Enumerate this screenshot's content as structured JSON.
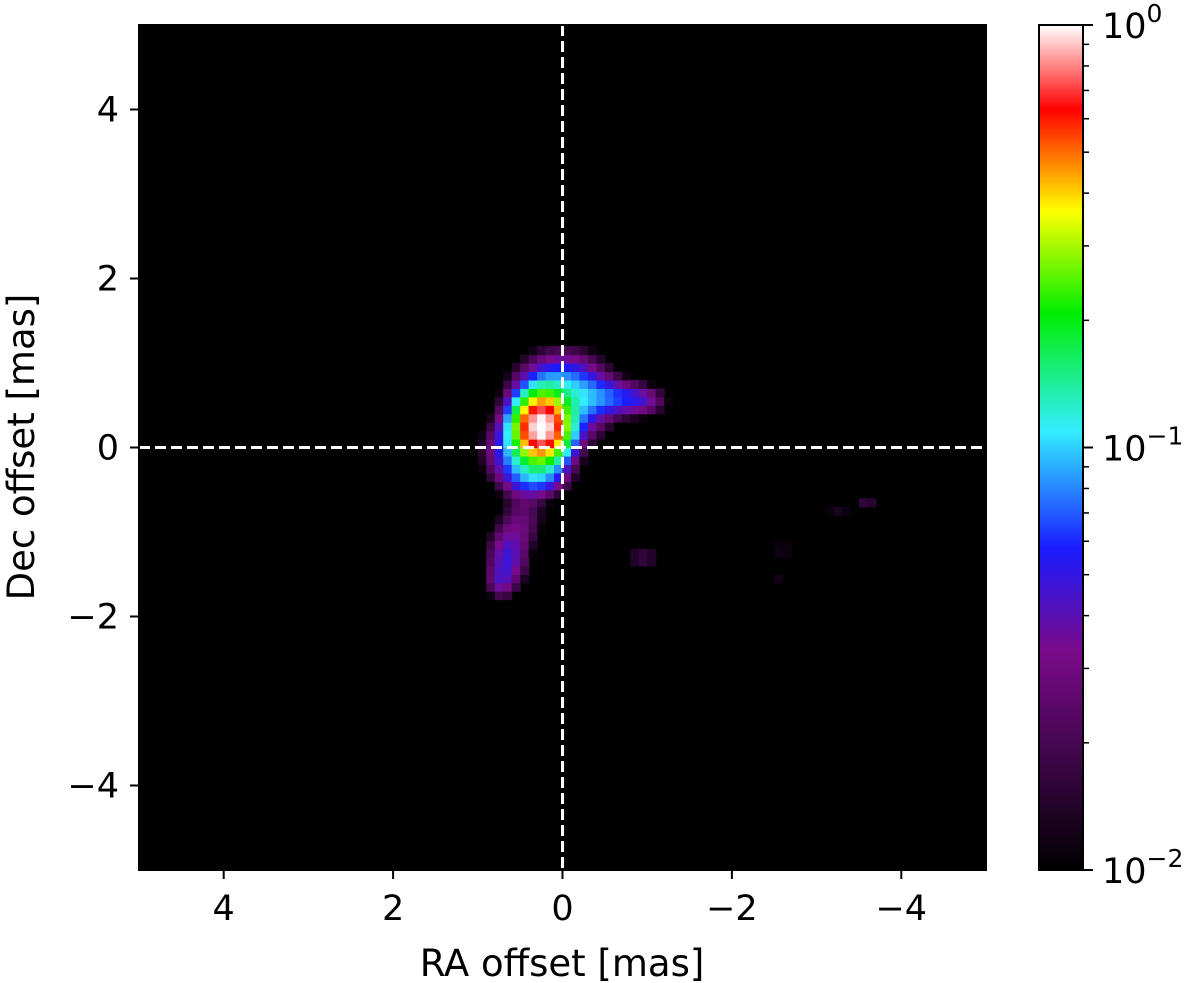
{
  "chart_data": {
    "type": "heatmap",
    "title": "",
    "xlabel": "RA offset [mas]",
    "ylabel": "Dec offset [mas]",
    "xlim": [
      5,
      -5
    ],
    "ylim": [
      -5,
      5
    ],
    "xticks": [
      4,
      2,
      0,
      -2,
      -4
    ],
    "yticks": [
      4,
      2,
      0,
      -2,
      -4
    ],
    "xtick_labels": [
      "4",
      "2",
      "0",
      "−2",
      "−4"
    ],
    "ytick_labels": [
      "4",
      "2",
      "0",
      "−2",
      "−4"
    ],
    "background_color": "#000000",
    "reference_lines": [
      {
        "orientation": "vertical",
        "value": 0,
        "style": "dashed",
        "color": "#ffffff"
      },
      {
        "orientation": "horizontal",
        "value": 0,
        "style": "dashed",
        "color": "#ffffff"
      }
    ],
    "colorbar": {
      "scale": "log",
      "range": [
        0.01,
        1
      ],
      "colormap": [
        "#000000",
        "#7a0a8a",
        "#1a1aff",
        "#33eeff",
        "#00ee00",
        "#ffff00",
        "#ff0000",
        "#ffffff"
      ],
      "tick_values": [
        0.01,
        0.1,
        1
      ],
      "tick_labels": [
        {
          "base": "10",
          "exp": "−2"
        },
        {
          "base": "10",
          "exp": "−1"
        },
        {
          "base": "10",
          "exp": "0"
        }
      ]
    },
    "components": [
      {
        "ra": 0.25,
        "dec": 0.25,
        "peak": 1.0,
        "size_ra": 0.17,
        "size_dec": 0.21
      },
      {
        "ra": 0.0,
        "dec": 0.6,
        "peak": 0.11,
        "size_ra": 0.33,
        "size_dec": 0.3
      },
      {
        "ra": 0.4,
        "dec": -0.05,
        "peak": 0.1,
        "size_ra": 0.28,
        "size_dec": 0.26
      },
      {
        "ra": -0.55,
        "dec": 0.6,
        "peak": 0.045,
        "size_ra": 0.27,
        "size_dec": 0.13
      },
      {
        "ra": -0.95,
        "dec": 0.55,
        "peak": 0.03,
        "size_ra": 0.2,
        "size_dec": 0.12
      },
      {
        "ra": 0.3,
        "dec": -0.35,
        "peak": 0.04,
        "size_ra": 0.22,
        "size_dec": 0.14
      },
      {
        "ra": 0.45,
        "dec": -0.85,
        "peak": 0.022,
        "size_ra": 0.17,
        "size_dec": 0.22
      },
      {
        "ra": 0.65,
        "dec": -1.3,
        "peak": 0.045,
        "size_ra": 0.16,
        "size_dec": 0.26
      },
      {
        "ra": 0.75,
        "dec": -1.6,
        "peak": 0.022,
        "size_ra": 0.1,
        "size_dec": 0.13
      },
      {
        "ra": -0.95,
        "dec": -1.3,
        "peak": 0.019,
        "size_ra": 0.18,
        "size_dec": 0.09
      },
      {
        "ra": -2.6,
        "dec": -1.2,
        "peak": 0.013,
        "size_ra": 0.17,
        "size_dec": 0.1
      },
      {
        "ra": -2.55,
        "dec": -1.55,
        "peak": 0.012,
        "size_ra": 0.05,
        "size_dec": 0.13
      },
      {
        "ra": -3.25,
        "dec": -0.72,
        "peak": 0.014,
        "size_ra": 0.18,
        "size_dec": 0.08
      },
      {
        "ra": -3.6,
        "dec": -0.68,
        "peak": 0.02,
        "size_ra": 0.08,
        "size_dec": 0.05
      }
    ]
  }
}
